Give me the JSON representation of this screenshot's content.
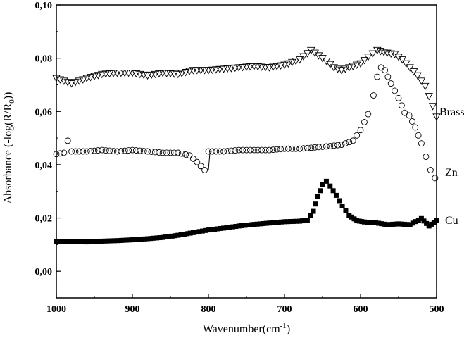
{
  "chart_data": {
    "type": "scatter",
    "title": "",
    "xlabel_main": "Wavenumber(cm",
    "xlabel_sup": "-1",
    "xlabel_end": ")",
    "ylabel_main": "Absorbance (-log(R/R",
    "ylabel_sub": "0",
    "ylabel_end": "))",
    "xlim": [
      1000,
      500
    ],
    "ylim": [
      -0.01,
      0.1
    ],
    "x_ticks": [
      1000,
      900,
      800,
      700,
      600,
      500
    ],
    "x_tick_labels": [
      "1000",
      "900",
      "800",
      "700",
      "600",
      "500"
    ],
    "y_ticks": [
      0.0,
      0.02,
      0.04,
      0.06,
      0.08,
      0.1
    ],
    "y_tick_labels": [
      "0,00",
      "0,02",
      "0,04",
      "0,06",
      "0,08",
      "0,10"
    ],
    "grid": false,
    "series": [
      {
        "name": "Brass",
        "marker": "triangle-down-open",
        "points": [
          [
            1000,
            0.0725
          ],
          [
            980,
            0.0705
          ],
          [
            960,
            0.0725
          ],
          [
            940,
            0.074
          ],
          [
            920,
            0.0745
          ],
          [
            900,
            0.0745
          ],
          [
            880,
            0.0735
          ],
          [
            860,
            0.0745
          ],
          [
            840,
            0.074
          ],
          [
            820,
            0.0755
          ],
          [
            800,
            0.0755
          ],
          [
            780,
            0.076
          ],
          [
            760,
            0.0765
          ],
          [
            740,
            0.077
          ],
          [
            720,
            0.0765
          ],
          [
            700,
            0.0775
          ],
          [
            680,
            0.0795
          ],
          [
            665,
            0.083
          ],
          [
            655,
            0.081
          ],
          [
            645,
            0.079
          ],
          [
            635,
            0.0765
          ],
          [
            625,
            0.0755
          ],
          [
            615,
            0.0765
          ],
          [
            600,
            0.078
          ],
          [
            590,
            0.0805
          ],
          [
            578,
            0.083
          ],
          [
            565,
            0.082
          ],
          [
            555,
            0.0815
          ],
          [
            545,
            0.0795
          ],
          [
            535,
            0.0765
          ],
          [
            525,
            0.0735
          ],
          [
            515,
            0.0695
          ],
          [
            505,
            0.062
          ],
          [
            500,
            0.058
          ]
        ]
      },
      {
        "name": "Zn",
        "marker": "circle-open",
        "points": [
          [
            1000,
            0.044
          ],
          [
            990,
            0.0445
          ],
          [
            985,
            0.049
          ],
          [
            980,
            0.045
          ],
          [
            960,
            0.045
          ],
          [
            940,
            0.0455
          ],
          [
            920,
            0.045
          ],
          [
            900,
            0.0455
          ],
          [
            880,
            0.045
          ],
          [
            860,
            0.0445
          ],
          [
            840,
            0.0445
          ],
          [
            825,
            0.0435
          ],
          [
            815,
            0.041
          ],
          [
            805,
            0.038
          ],
          [
            800,
            0.045
          ],
          [
            780,
            0.045
          ],
          [
            760,
            0.0455
          ],
          [
            740,
            0.0455
          ],
          [
            720,
            0.0455
          ],
          [
            700,
            0.046
          ],
          [
            680,
            0.046
          ],
          [
            660,
            0.0465
          ],
          [
            640,
            0.047
          ],
          [
            625,
            0.0475
          ],
          [
            610,
            0.049
          ],
          [
            600,
            0.053
          ],
          [
            590,
            0.059
          ],
          [
            583,
            0.066
          ],
          [
            578,
            0.073
          ],
          [
            573,
            0.0765
          ],
          [
            568,
            0.0755
          ],
          [
            560,
            0.0705
          ],
          [
            550,
            0.065
          ],
          [
            542,
            0.0595
          ],
          [
            536,
            0.0585
          ],
          [
            528,
            0.054
          ],
          [
            520,
            0.048
          ],
          [
            514,
            0.043
          ],
          [
            508,
            0.038
          ],
          [
            502,
            0.035
          ]
        ]
      },
      {
        "name": "Cu",
        "marker": "square-filled",
        "points": [
          [
            1000,
            0.0112
          ],
          [
            980,
            0.0112
          ],
          [
            960,
            0.011
          ],
          [
            940,
            0.0113
          ],
          [
            920,
            0.0115
          ],
          [
            900,
            0.0118
          ],
          [
            880,
            0.0122
          ],
          [
            860,
            0.0127
          ],
          [
            840,
            0.0135
          ],
          [
            820,
            0.0145
          ],
          [
            800,
            0.0155
          ],
          [
            780,
            0.0162
          ],
          [
            760,
            0.017
          ],
          [
            740,
            0.0176
          ],
          [
            720,
            0.0181
          ],
          [
            700,
            0.0186
          ],
          [
            680,
            0.0188
          ],
          [
            670,
            0.0192
          ],
          [
            662,
            0.0225
          ],
          [
            656,
            0.028
          ],
          [
            650,
            0.0325
          ],
          [
            645,
            0.0338
          ],
          [
            640,
            0.032
          ],
          [
            632,
            0.0285
          ],
          [
            624,
            0.0245
          ],
          [
            615,
            0.021
          ],
          [
            605,
            0.019
          ],
          [
            595,
            0.0185
          ],
          [
            580,
            0.0182
          ],
          [
            565,
            0.0175
          ],
          [
            550,
            0.0178
          ],
          [
            535,
            0.0175
          ],
          [
            520,
            0.0198
          ],
          [
            510,
            0.017
          ],
          [
            500,
            0.019
          ]
        ]
      }
    ]
  }
}
